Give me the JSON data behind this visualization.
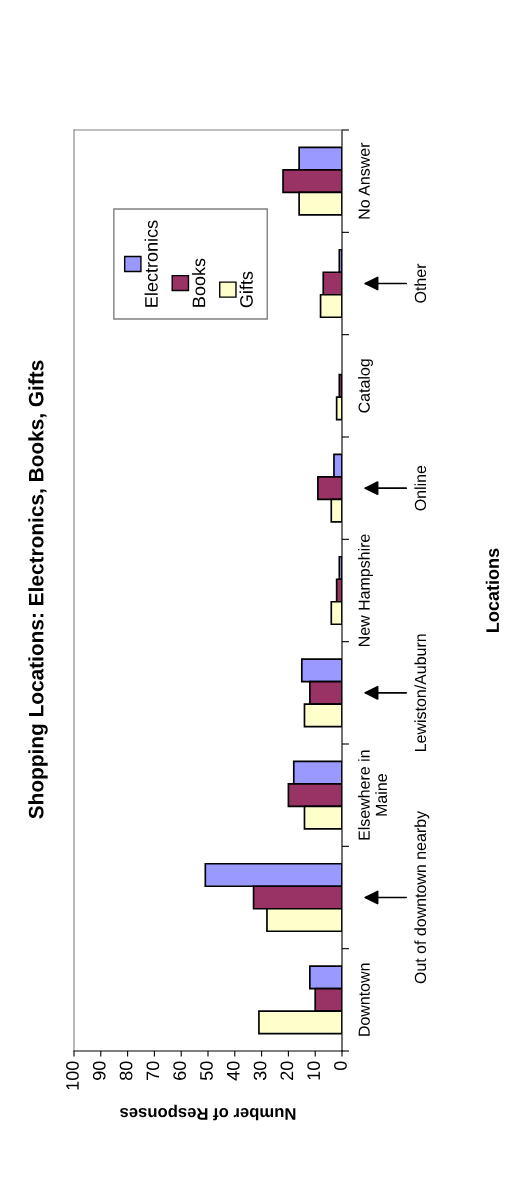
{
  "chart_data": {
    "type": "bar",
    "orientation": "horizontal",
    "title": "Shopping Locations: Electronics, Books, Gifts",
    "xlabel": "Number of Responses",
    "ylabel": "Locations",
    "categories": [
      "No Answer",
      "Other",
      "Catalog",
      "Online",
      "New Hampshire",
      "Lewiston/Auburn",
      "Elsewhere in Maine",
      "Out of downtown nearby",
      "Downtown"
    ],
    "series": [
      {
        "name": "Electronics",
        "color": "#9999ff",
        "values": [
          16,
          1,
          null,
          3,
          1,
          15,
          18,
          51,
          12
        ]
      },
      {
        "name": "Books",
        "color": "#993366",
        "values": [
          22,
          7,
          1,
          9,
          2,
          12,
          20,
          33,
          10
        ]
      },
      {
        "name": "Gifts",
        "color": "#ffffcc",
        "values": [
          16,
          8,
          2,
          4,
          4,
          14,
          14,
          28,
          31
        ]
      }
    ],
    "xlim": [
      100,
      0
    ],
    "xticks": [
      0,
      10,
      20,
      30,
      40,
      50,
      60,
      70,
      80,
      90,
      100
    ],
    "grid": false,
    "legend": "top left"
  }
}
